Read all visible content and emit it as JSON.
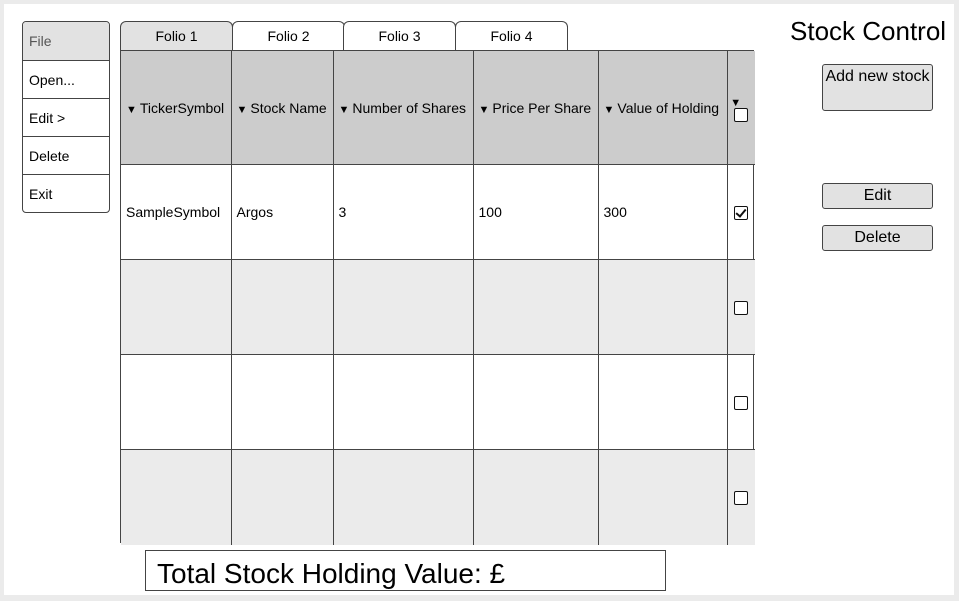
{
  "app": {
    "title": "Stock Control"
  },
  "menu": {
    "items": [
      "File",
      "Open...",
      "Edit >",
      "Delete",
      "Exit"
    ]
  },
  "tabs": [
    "Folio 1",
    "Folio 2",
    "Folio 3",
    "Folio 4"
  ],
  "table": {
    "caret": "▼",
    "columns": [
      "TickerSymbol",
      "Stock Name",
      "Number of Shares",
      "Price Per Share",
      "Value of Holding"
    ],
    "rows": [
      {
        "cells": [
          "SampleSymbol",
          "Argos",
          "3",
          "100",
          "300"
        ],
        "checked": true
      },
      {
        "cells": [
          "",
          "",
          "",
          "",
          ""
        ],
        "checked": false
      },
      {
        "cells": [
          "",
          "",
          "",
          "",
          ""
        ],
        "checked": false
      },
      {
        "cells": [
          "",
          "",
          "",
          "",
          ""
        ],
        "checked": false
      }
    ]
  },
  "buttons": {
    "add": "Add new stock",
    "edit": "Edit",
    "delete": "Delete"
  },
  "total": {
    "label": "Total Stock Holding Value: £"
  }
}
